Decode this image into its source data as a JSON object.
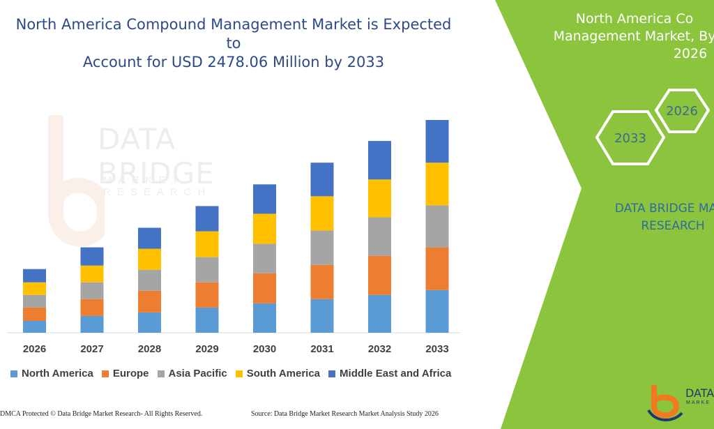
{
  "title_line1": "North America Compound Management Market is Expected to",
  "title_line2": "Account for USD 2478.06 Million by 2033",
  "watermark": {
    "big": "DATA BRIDGE",
    "small": "MARKET RESEARCH"
  },
  "side_panel": {
    "title_line1": "North America Co",
    "title_line2": "Management Market, By",
    "title_line3": "2026",
    "hex_left": "2033",
    "hex_right": "2026",
    "brand_line1": "DATA BRIDGE MA",
    "brand_line2": "RESEARCH",
    "logo_text": "DATA",
    "logo_sub": "MARKE",
    "color": "#8cc43e"
  },
  "footer": {
    "left": "DMCA Protected © Data Bridge Market Research-  All Rights Reserved.",
    "right": "Source: Data Bridge Market Research  Market Analysis Study 2026"
  },
  "chart_data": {
    "type": "bar",
    "stacked": true,
    "categories": [
      "2026",
      "2027",
      "2028",
      "2029",
      "2030",
      "2031",
      "2032",
      "2033"
    ],
    "series": [
      {
        "name": "North America",
        "color": "#5b9bd5",
        "values": [
          17,
          24,
          29,
          36,
          42,
          48,
          54,
          61
        ]
      },
      {
        "name": "Europe",
        "color": "#ed7d31",
        "values": [
          19,
          24,
          31,
          36,
          43,
          49,
          56,
          61
        ]
      },
      {
        "name": "Asia Pacific",
        "color": "#a5a5a5",
        "values": [
          18,
          24,
          30,
          36,
          42,
          49,
          55,
          60
        ]
      },
      {
        "name": "South America",
        "color": "#ffc000",
        "values": [
          18,
          24,
          30,
          37,
          43,
          49,
          54,
          61
        ]
      },
      {
        "name": "Middle East and Africa",
        "color": "#4472c4",
        "values": [
          19,
          26,
          30,
          36,
          42,
          48,
          55,
          61
        ]
      }
    ],
    "ylim": [
      0,
      304
    ],
    "grid": false,
    "legend": "bottom"
  }
}
